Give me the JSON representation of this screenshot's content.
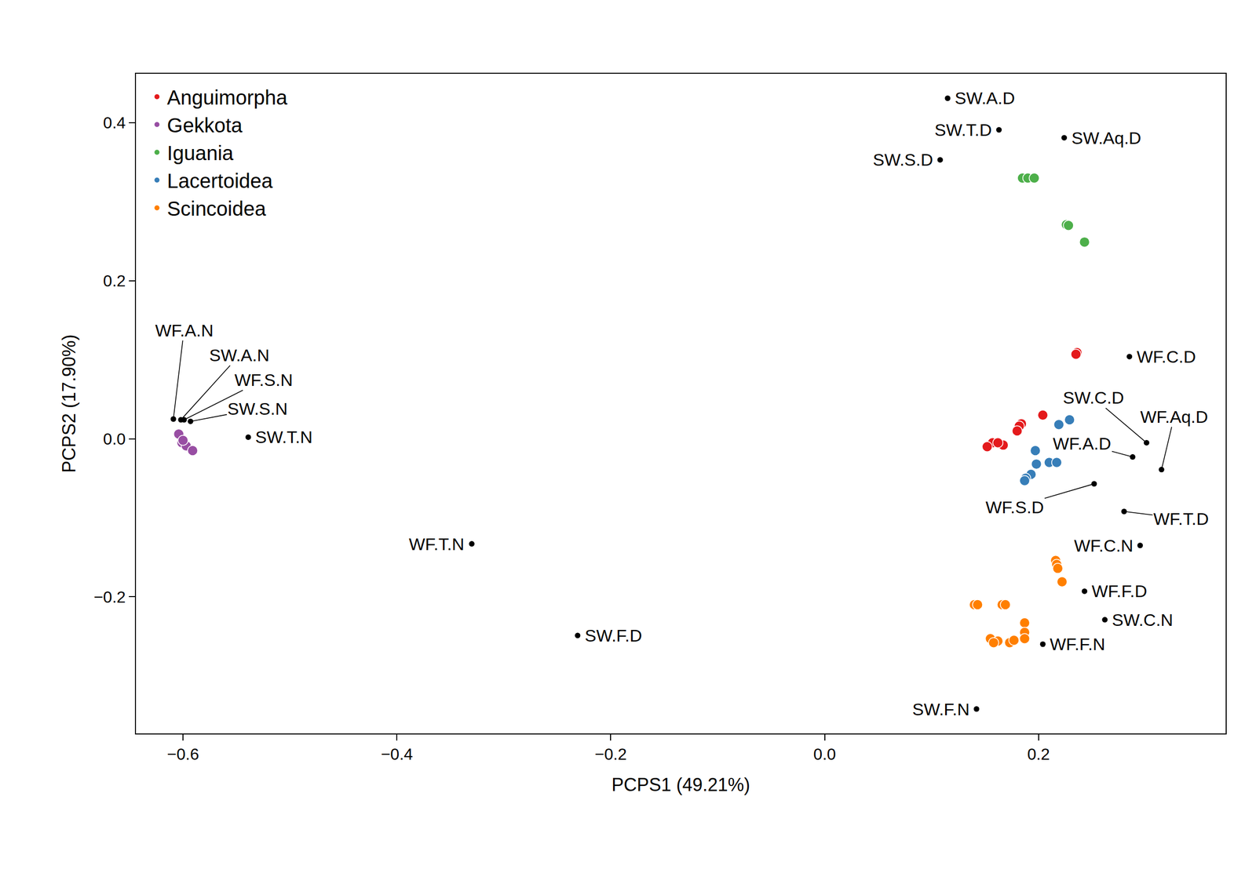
{
  "chart_data": {
    "type": "scatter",
    "x_label": "PCPS1 (49.21%)",
    "y_label": "PCPS2 (17.90%)",
    "xlim": [
      -0.644,
      0.375
    ],
    "ylim": [
      -0.373,
      0.462
    ],
    "xticks": [
      {
        "value": -0.6,
        "label": "−0.6"
      },
      {
        "value": -0.4,
        "label": "−0.4"
      },
      {
        "value": -0.2,
        "label": "−0.2"
      },
      {
        "value": 0.0,
        "label": "0.0"
      },
      {
        "value": 0.2,
        "label": "0.2"
      }
    ],
    "yticks": [
      {
        "value": -0.2,
        "label": "−0.2"
      },
      {
        "value": 0.0,
        "label": "0.0"
      },
      {
        "value": 0.2,
        "label": "0.2"
      },
      {
        "value": 0.4,
        "label": "0.4"
      }
    ],
    "grid": false,
    "legend": "upper left",
    "series": [
      {
        "name": "Anguimorpha",
        "color": "#E41A1C",
        "x": [
          0.236,
          0.235,
          0.204,
          0.184,
          0.182,
          0.18,
          0.157,
          0.167,
          0.152,
          0.162
        ],
        "y": [
          0.109,
          0.107,
          0.03,
          0.019,
          0.016,
          0.01,
          -0.005,
          -0.008,
          -0.01,
          -0.005
        ]
      },
      {
        "name": "Gekkota",
        "color": "#984EA3",
        "x": [
          -0.604,
          -0.601,
          -0.597,
          -0.591,
          -0.6
        ],
        "y": [
          0.006,
          -0.005,
          -0.009,
          -0.015,
          -0.002
        ]
      },
      {
        "name": "Iguania",
        "color": "#4DAF4A",
        "x": [
          0.185,
          0.19,
          0.196,
          0.226,
          0.228,
          0.243
        ],
        "y": [
          0.33,
          0.33,
          0.33,
          0.271,
          0.27,
          0.249
        ]
      },
      {
        "name": "Lacertoidea",
        "color": "#377EB8",
        "x": [
          0.229,
          0.219,
          0.197,
          0.21,
          0.217,
          0.198,
          0.193,
          0.188,
          0.187
        ],
        "y": [
          0.024,
          0.018,
          -0.015,
          -0.03,
          -0.03,
          -0.032,
          -0.045,
          -0.05,
          -0.053
        ]
      },
      {
        "name": "Scincoidea",
        "color": "#FF7F00",
        "x": [
          0.216,
          0.217,
          0.218,
          0.222,
          0.14,
          0.143,
          0.166,
          0.169,
          0.187,
          0.187,
          0.187,
          0.155,
          0.162,
          0.173,
          0.158,
          0.177
        ],
        "y": [
          -0.154,
          -0.159,
          -0.164,
          -0.181,
          -0.21,
          -0.21,
          -0.21,
          -0.21,
          -0.233,
          -0.245,
          -0.253,
          -0.253,
          -0.256,
          -0.258,
          -0.258,
          -0.255
        ]
      }
    ],
    "labeled_points": {
      "color": "#000000",
      "points": [
        {
          "label": "SW.A.D",
          "x": 0.115,
          "y": 0.431
        },
        {
          "label": "SW.T.D",
          "x": 0.163,
          "y": 0.391
        },
        {
          "label": "SW.Aq.D",
          "x": 0.224,
          "y": 0.381
        },
        {
          "label": "SW.S.D",
          "x": 0.108,
          "y": 0.353
        },
        {
          "label": "WF.C.D",
          "x": 0.285,
          "y": 0.104
        },
        {
          "label": "SW.C.D",
          "x": 0.301,
          "y": -0.005
        },
        {
          "label": "WF.Aq.D",
          "x": 0.315,
          "y": -0.039
        },
        {
          "label": "WF.A.D",
          "x": 0.288,
          "y": -0.023
        },
        {
          "label": "WF.S.D",
          "x": 0.252,
          "y": -0.057
        },
        {
          "label": "WF.T.D",
          "x": 0.28,
          "y": -0.092
        },
        {
          "label": "WF.C.N",
          "x": 0.295,
          "y": -0.135
        },
        {
          "label": "WF.F.D",
          "x": 0.243,
          "y": -0.193
        },
        {
          "label": "SW.C.N",
          "x": 0.262,
          "y": -0.229
        },
        {
          "label": "WF.F.N",
          "x": 0.204,
          "y": -0.26
        },
        {
          "label": "SW.F.N",
          "x": 0.142,
          "y": -0.342
        },
        {
          "label": "SW.F.D",
          "x": -0.231,
          "y": -0.249
        },
        {
          "label": "WF.T.N",
          "x": -0.33,
          "y": -0.133
        },
        {
          "label": "SW.T.N",
          "x": -0.539,
          "y": 0.002
        },
        {
          "label": "WF.A.N",
          "x": -0.609,
          "y": 0.025
        },
        {
          "label": "SW.A.N",
          "x": -0.602,
          "y": 0.024
        },
        {
          "label": "WF.S.N",
          "x": -0.599,
          "y": 0.024
        },
        {
          "label": "SW.S.N",
          "x": -0.593,
          "y": 0.022
        }
      ]
    }
  }
}
